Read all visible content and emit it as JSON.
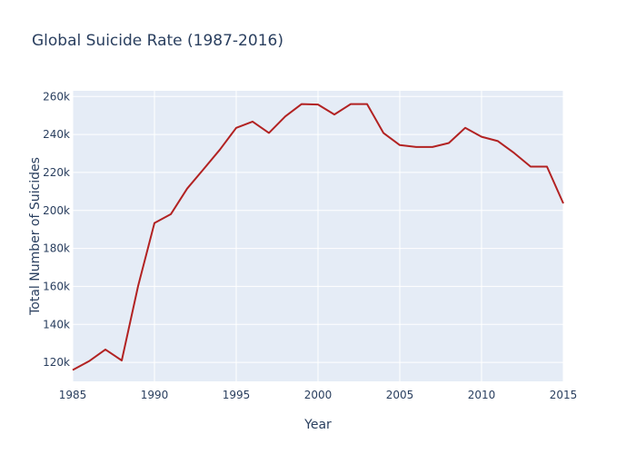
{
  "chart_data": {
    "type": "line",
    "title": "Global Suicide Rate (1987-2016)",
    "xlabel": "Year",
    "ylabel": "Total Number of Suicides",
    "xlim": [
      1985,
      2015
    ],
    "ylim": [
      110000,
      263000
    ],
    "x_ticks": [
      1985,
      1990,
      1995,
      2000,
      2005,
      2010,
      2015
    ],
    "y_ticks": [
      120000,
      140000,
      160000,
      180000,
      200000,
      220000,
      240000,
      260000
    ],
    "y_tick_labels": [
      "120k",
      "140k",
      "160k",
      "180k",
      "200k",
      "220k",
      "240k",
      "260k"
    ],
    "grid": true,
    "colors": {
      "background": "#e5ecf6",
      "grid": "#ffffff",
      "line": "#b22222",
      "text": "#2a3f5f"
    },
    "series": [
      {
        "x": [
          1985,
          1986,
          1987,
          1988,
          1989,
          1990,
          1991,
          1992,
          1993,
          1994,
          1995,
          1996,
          1997,
          1998,
          1999,
          2000,
          2001,
          2002,
          2003,
          2004,
          2005,
          2006,
          2007,
          2008,
          2009,
          2010,
          2011,
          2012,
          2013,
          2014,
          2015
        ],
        "values": [
          116000,
          120600,
          126800,
          121000,
          160200,
          193400,
          198000,
          211500,
          221700,
          232000,
          243500,
          246800,
          240800,
          249500,
          256000,
          255800,
          250500,
          256000,
          256000,
          240800,
          234400,
          233400,
          233400,
          235500,
          243500,
          238800,
          236500,
          230200,
          223100,
          223100,
          203700
        ]
      }
    ]
  }
}
